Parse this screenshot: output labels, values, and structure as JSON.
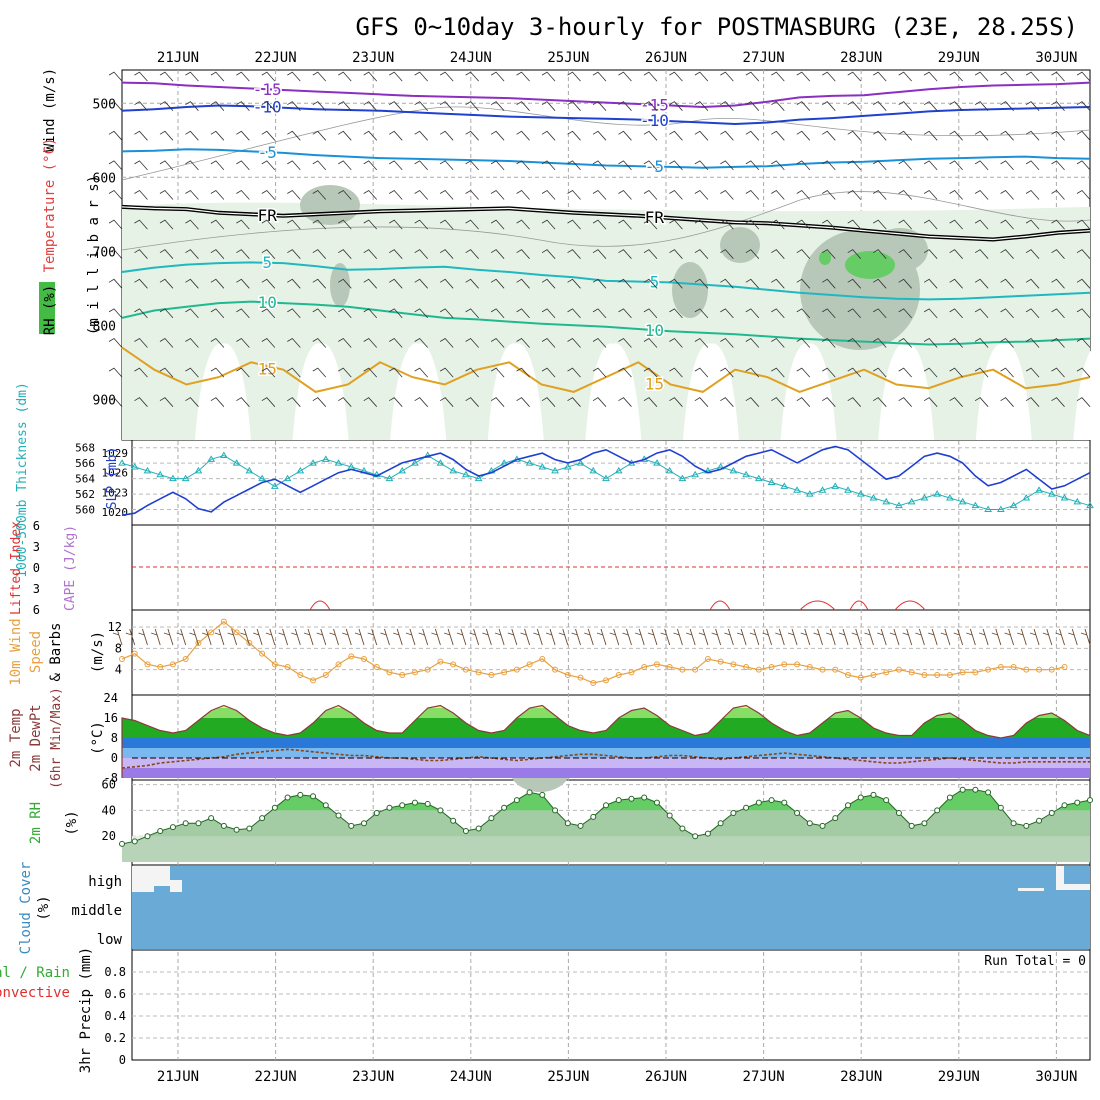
{
  "title": "GFS 0~10day 3-hourly for POSTMASBURG (23E, 28.25S)",
  "dates": [
    "21JUN",
    "22JUN",
    "23JUN",
    "24JUN",
    "25JUN",
    "26JUN",
    "27JUN",
    "28JUN",
    "29JUN",
    "30JUN"
  ],
  "colors": {
    "rh_light": "#e6f2e6",
    "rh_mid": "#c8d6c8",
    "rh_dark": "#8fa08f",
    "rh_green": "#66cc66",
    "freeze": "#000000",
    "slp": "#1f3fd0",
    "thickness": "#22b0b8",
    "cape": "#e03030",
    "wind": "#e8a040",
    "cloud": "#6aaad6",
    "temp_green": "#33aa33",
    "dewpt": "#8b4513"
  },
  "panels": {
    "upper": {
      "ylabel_wind": "Wind (m/s)",
      "ylabel_temp": "Temperature (°C)",
      "ylabel_rh": "RH (%)",
      "ylabel_units": "(m i l l i b a r s)",
      "chart_data": {
        "type": "contour",
        "pressure_ticks": [
          "500",
          "600",
          "700",
          "800",
          "900"
        ],
        "isotherms": [
          {
            "label": "-15",
            "color": "#8a2fc0",
            "levels": [
              472,
              473,
              476,
              478,
              480,
              482,
              484,
              486,
              488,
              490,
              491,
              492,
              493,
              495,
              497,
              499,
              501,
              503,
              505,
              503,
              498,
              492,
              490,
              489,
              485,
              481,
              478,
              476,
              475,
              474,
              472
            ]
          },
          {
            "label": "-10",
            "color": "#2040d0",
            "levels": [
              510,
              508,
              505,
              503,
              504,
              506,
              508,
              509,
              510,
              512,
              514,
              516,
              518,
              519,
              520,
              521,
              522,
              524,
              526,
              528,
              526,
              522,
              520,
              517,
              514,
              511,
              509,
              508,
              507,
              506,
              505
            ]
          },
          {
            "label": "-5",
            "color": "#1a90d8",
            "levels": [
              565,
              564,
              562,
              563,
              565,
              567,
              570,
              572,
              574,
              575,
              576,
              577,
              578,
              580,
              582,
              584,
              585,
              586,
              587,
              586,
              585,
              582,
              580,
              579,
              577,
              575,
              574,
              573,
              572,
              574,
              575
            ]
          },
          {
            "label": "FR",
            "color": "#000000",
            "levels": [
              640,
              642,
              643,
              648,
              650,
              652,
              650,
              648,
              646,
              645,
              644,
              643,
              642,
              645,
              648,
              650,
              652,
              655,
              658,
              661,
              662,
              665,
              668,
              672,
              676,
              680,
              682,
              684,
              680,
              675,
              672
            ]
          },
          {
            "label": "5",
            "color": "#20b8c0",
            "levels": [
              728,
              722,
              718,
              716,
              715,
              716,
              720,
              725,
              724,
              722,
              721,
              725,
              728,
              732,
              735,
              740,
              741,
              742,
              745,
              748,
              752,
              756,
              759,
              762,
              764,
              765,
              764,
              762,
              760,
              758,
              756
            ]
          },
          {
            "label": "10",
            "color": "#20b890",
            "levels": [
              790,
              780,
              775,
              770,
              768,
              770,
              772,
              775,
              780,
              785,
              790,
              792,
              795,
              798,
              800,
              802,
              805,
              808,
              810,
              812,
              815,
              818,
              820,
              822,
              824,
              826,
              825,
              823,
              822,
              820,
              818
            ]
          },
          {
            "label": "15",
            "color": "#e0a020",
            "levels": [
              830,
              860,
              880,
              870,
              850,
              860,
              890,
              880,
              850,
              870,
              880,
              860,
              850,
              880,
              890,
              870,
              850,
              880,
              890,
              860,
              870,
              890,
              875,
              860,
              880,
              885,
              870,
              860,
              885,
              880,
              870
            ]
          }
        ]
      }
    },
    "slp": {
      "ylabel_left": "1000-500mb Thickness (dm)",
      "ylabel_right": "SLP (mb)",
      "thick_ticks": [
        "568",
        "566",
        "564",
        "562",
        "560"
      ],
      "slp_ticks": [
        "1029",
        "1026",
        "1023",
        "1020"
      ],
      "chart_data": {
        "type": "line",
        "series": [
          {
            "name": "SLP (mb)",
            "values": [
              1019.5,
              1019.8,
              1021,
              1022,
              1023,
              1022,
              1020.5,
              1020,
              1021.5,
              1022.5,
              1023.5,
              1024.5,
              1025,
              1024,
              1023,
              1024,
              1025,
              1026,
              1026.5,
              1026,
              1025.5,
              1026.5,
              1027.5,
              1028,
              1028.5,
              1029,
              1028,
              1026.5,
              1025.5,
              1026,
              1027,
              1028,
              1028.5,
              1029,
              1028,
              1027.5,
              1028,
              1029,
              1029.5,
              1028.5,
              1027.5,
              1028,
              1029,
              1029.5,
              1028.5,
              1027,
              1026,
              1026.5,
              1027.5,
              1028.5,
              1029,
              1029.5,
              1028.5,
              1027.5,
              1028.5,
              1029.5,
              1030,
              1029.5,
              1028,
              1026.5,
              1025,
              1025.5,
              1027,
              1028.5,
              1029,
              1028.5,
              1027.5,
              1025.5,
              1024,
              1024.5,
              1025.5,
              1026.5,
              1025,
              1023.5,
              1024,
              1025,
              1026
            ]
          },
          {
            "name": "Thickness (dm)",
            "values": [
              566,
              565.5,
              565,
              564.5,
              564,
              564,
              565,
              566.5,
              567,
              566,
              565,
              564,
              563,
              564,
              565,
              566,
              566.5,
              566,
              565.5,
              565,
              564.5,
              564,
              565,
              566,
              567,
              566,
              565,
              564.5,
              564,
              565,
              566,
              566.5,
              566,
              565.5,
              565,
              565.5,
              566,
              565,
              564,
              565,
              566,
              566.5,
              566,
              565,
              564,
              564.5,
              565,
              565.5,
              565,
              564.5,
              564,
              563.5,
              563,
              562.5,
              562,
              562.5,
              563,
              562.5,
              562,
              561.5,
              561,
              560.5,
              561,
              561.5,
              562,
              561.5,
              561,
              560.5,
              560,
              560,
              560.5,
              561.5,
              562.5,
              562,
              561.5,
              561,
              560.5
            ]
          }
        ]
      }
    },
    "cape": {
      "ylabel_red": "Lifted Index",
      "ylabel_purple": "CAPE (J/kg)",
      "ticks": [
        "6",
        "3",
        "0",
        "3",
        "6"
      ],
      "chart_data": {
        "type": "line",
        "series": [
          {
            "name": "Lifted Index",
            "values": []
          }
        ]
      }
    },
    "wind10": {
      "ylabel_a": "10m Wind",
      "ylabel_b": "Speed",
      "ylabel_c": "& Barbs",
      "units": "(m/s)",
      "ticks": [
        "12",
        "8",
        "4"
      ],
      "chart_data": {
        "type": "line",
        "series": [
          {
            "name": "10m wind speed",
            "values": [
              6,
              7,
              5,
              4.5,
              5,
              6,
              9,
              11,
              13,
              11,
              9,
              7,
              5,
              4.5,
              3,
              2,
              3,
              5,
              6.5,
              6,
              4.5,
              3.5,
              3,
              3.5,
              4,
              5.5,
              5,
              4,
              3.5,
              3,
              3.5,
              4,
              5,
              6,
              4,
              3,
              2.5,
              1.5,
              2,
              3,
              3.5,
              4.5,
              5,
              4.5,
              4,
              4,
              6,
              5.5,
              5,
              4.5,
              4,
              4.5,
              5,
              5,
              4.5,
              4,
              4,
              3,
              2.5,
              3,
              3.5,
              4,
              3.5,
              3,
              3,
              3,
              3.5,
              3.5,
              4,
              4.5,
              4.5,
              4,
              4,
              4,
              4.5
            ]
          }
        ]
      }
    },
    "temp2m": {
      "ylabel_a": "2m Temp",
      "ylabel_b": "2m DewPt",
      "ylabel_c": "(6hr Min/Max)",
      "units": "(°C)",
      "ticks": [
        "24",
        "16",
        "8",
        "0",
        "-8"
      ],
      "chart_data": {
        "type": "area",
        "series": [
          {
            "name": "2m Temp",
            "values": [
              16,
              15,
              13,
              11,
              10,
              11,
              15,
              19,
              21,
              19,
              15,
              12,
              10,
              9,
              10,
              14,
              19,
              21,
              18,
              14,
              11,
              10,
              10,
              15,
              20,
              21,
              18,
              14,
              11,
              10,
              11,
              16,
              20,
              21,
              17,
              13,
              11,
              10,
              11,
              16,
              19,
              20,
              17,
              13,
              11,
              9,
              10,
              15,
              20,
              21,
              18,
              14,
              11,
              9,
              10,
              14,
              18,
              19,
              16,
              12,
              10,
              9,
              9,
              14,
              17,
              18,
              15,
              11,
              9,
              8,
              9,
              14,
              17,
              18,
              15,
              11,
              9
            ]
          },
          {
            "name": "2m DewPt",
            "values": [
              -4,
              -3.5,
              -3,
              -2,
              -1.5,
              -1,
              -0.5,
              0,
              0.5,
              1.5,
              2,
              2.5,
              3,
              3.5,
              3,
              2.5,
              2,
              1.5,
              1,
              1,
              0.5,
              0,
              0,
              -0.5,
              -1,
              -1,
              -0.5,
              0,
              0.5,
              0,
              -0.5,
              -1,
              -0.5,
              0,
              0.5,
              1,
              1.5,
              1.5,
              1,
              0.5,
              0,
              0,
              0.5,
              1,
              1,
              0.5,
              0,
              -0.5,
              0,
              0.5,
              1,
              1.5,
              2,
              1.5,
              1,
              0.5,
              0,
              -0.5,
              -1,
              -1.5,
              -2,
              -2,
              -1.5,
              -1,
              -0.5,
              0,
              -0.5,
              -1,
              -1.5,
              -2,
              -2,
              -1.5,
              -1.5,
              -1.5,
              -1.5,
              -1.5,
              -1.5
            ]
          }
        ]
      }
    },
    "rh2m": {
      "ylabel": "2m RH",
      "units": "(%)",
      "ticks": [
        "60",
        "40",
        "20"
      ],
      "chart_data": {
        "type": "area",
        "series": [
          {
            "name": "2m RH",
            "values": [
              14,
              16,
              20,
              24,
              27,
              30,
              30,
              34,
              28,
              25,
              26,
              34,
              42,
              50,
              52,
              51,
              44,
              36,
              28,
              30,
              38,
              42,
              44,
              46,
              45,
              40,
              32,
              24,
              26,
              34,
              42,
              48,
              54,
              52,
              40,
              30,
              28,
              35,
              44,
              48,
              49,
              50,
              46,
              36,
              26,
              20,
              22,
              30,
              38,
              42,
              46,
              48,
              46,
              38,
              30,
              28,
              34,
              44,
              50,
              52,
              48,
              38,
              28,
              30,
              40,
              50,
              56,
              56,
              54,
              42,
              30,
              28,
              32,
              38,
              44,
              46,
              48
            ]
          }
        ]
      }
    },
    "cloud": {
      "ylabel": "Cloud Cover",
      "units": "(%)",
      "levels": [
        "high",
        "middle",
        "low"
      ],
      "chart_data": {
        "type": "heatmap"
      }
    },
    "precip": {
      "ylabel_a": "Total / Rain",
      "ylabel_b": "Convective",
      "ylabel_c": "3hr Precip (mm)",
      "run_total": "Run Total = 0",
      "ticks": [
        "0.8",
        "0.6",
        "0.4",
        "0.2",
        "0"
      ],
      "chart_data": {
        "type": "bar",
        "series": [
          {
            "name": "Total",
            "values": []
          }
        ]
      }
    }
  }
}
